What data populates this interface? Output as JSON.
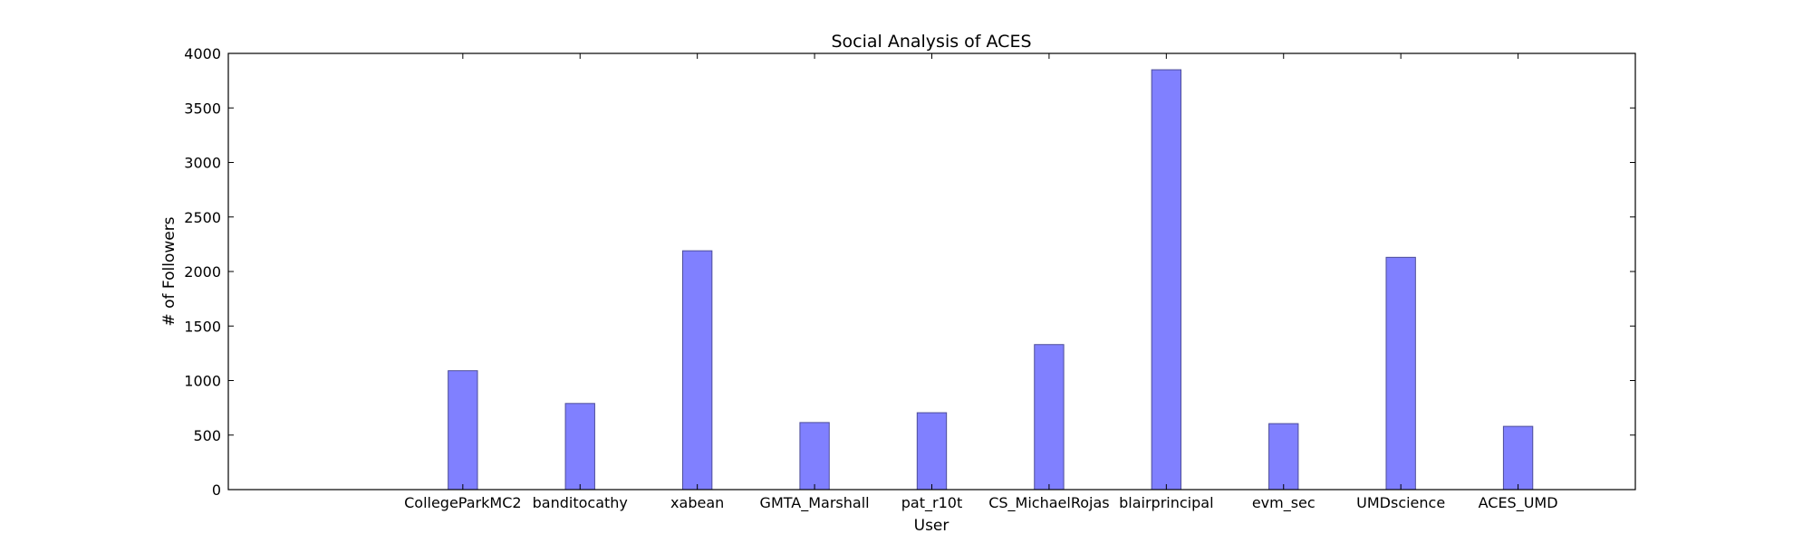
{
  "chart_data": {
    "type": "bar",
    "title": "Social Analysis of ACES",
    "xlabel": "User",
    "ylabel": "# of Followers",
    "categories": [
      "CollegeParkMC2",
      "banditocathy",
      "xabean",
      "GMTA_Marshall",
      "pat_r10t",
      "CS_MichaelRojas",
      "blairprincipal",
      "evm_sec",
      "UMDscience",
      "ACES_UMD"
    ],
    "values": [
      1090,
      790,
      2190,
      615,
      705,
      1330,
      3850,
      605,
      2130,
      580
    ],
    "ylim": [
      0,
      4000
    ],
    "yticks": [
      0,
      500,
      1000,
      1500,
      2000,
      2500,
      3000,
      3500,
      4000
    ],
    "xlim": [
      -2,
      10
    ],
    "grid": false,
    "bar_color": "#8080ff",
    "bar_edge_color": "#4d4d99"
  }
}
